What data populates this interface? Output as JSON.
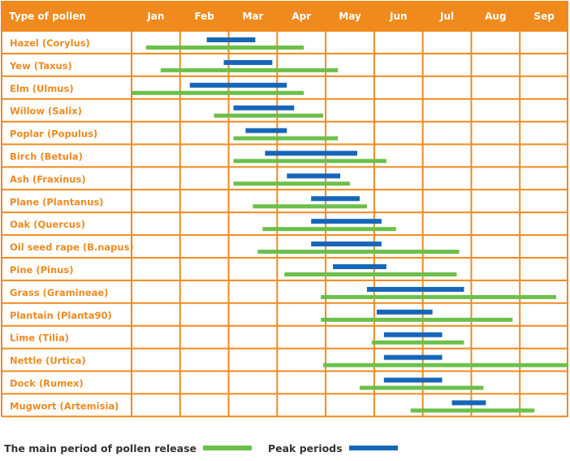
{
  "colors": {
    "header_bg": "#f08a1d",
    "grid": "#f08a1d",
    "label_text": "#ef8a1f",
    "main_bar": "#6cc04a",
    "peak_bar": "#1666b8"
  },
  "legend": {
    "main_label": "The main period of pollen release",
    "peak_label": "Peak periods"
  },
  "chart_data": {
    "type": "gantt",
    "title": "",
    "header_label": "Type of pollen",
    "months": [
      "Jan",
      "Feb",
      "Mar",
      "Apr",
      "May",
      "Jun",
      "Jul",
      "Aug",
      "Sep"
    ],
    "x_unit": "month (0 = start of Jan, 9 = end of Sep)",
    "rows": [
      {
        "label": "Hazel (Corylus)",
        "main": [
          0.3,
          3.55
        ],
        "peak": [
          1.55,
          2.55
        ]
      },
      {
        "label": "Yew (Taxus)",
        "main": [
          0.6,
          4.25
        ],
        "peak": [
          1.9,
          2.9
        ]
      },
      {
        "label": "Elm (Ulmus)",
        "main": [
          0.0,
          3.55
        ],
        "peak": [
          1.2,
          3.2
        ]
      },
      {
        "label": "Willow (Salix)",
        "main": [
          1.7,
          3.95
        ],
        "peak": [
          2.1,
          3.35
        ]
      },
      {
        "label": "Poplar (Populus)",
        "main": [
          2.1,
          4.25
        ],
        "peak": [
          2.35,
          3.2
        ]
      },
      {
        "label": "Birch (Betula)",
        "main": [
          2.1,
          5.25
        ],
        "peak": [
          2.75,
          4.65
        ]
      },
      {
        "label": "Ash (Fraxinus)",
        "main": [
          2.1,
          4.5
        ],
        "peak": [
          3.2,
          4.3
        ]
      },
      {
        "label": "Plane (Plantanus)",
        "main": [
          2.5,
          4.85
        ],
        "peak": [
          3.7,
          4.7
        ]
      },
      {
        "label": "Oak (Quercus)",
        "main": [
          2.7,
          5.45
        ],
        "peak": [
          3.7,
          5.15
        ]
      },
      {
        "label": "Oil seed rape (B.napus)",
        "main": [
          2.6,
          6.75
        ],
        "peak": [
          3.7,
          5.15
        ]
      },
      {
        "label": "Pine (Pinus)",
        "main": [
          3.15,
          6.7
        ],
        "peak": [
          4.15,
          5.25
        ]
      },
      {
        "label": "Grass (Gramineae)",
        "main": [
          3.9,
          8.75
        ],
        "peak": [
          4.85,
          6.85
        ]
      },
      {
        "label": "Plantain (Planta90)",
        "main": [
          3.9,
          7.85
        ],
        "peak": [
          5.05,
          6.2
        ]
      },
      {
        "label": "Lime (Tilia)",
        "main": [
          4.95,
          6.85
        ],
        "peak": [
          5.2,
          6.4
        ]
      },
      {
        "label": "Nettle (Urtica)",
        "main": [
          3.95,
          9.0
        ],
        "peak": [
          5.2,
          6.4
        ]
      },
      {
        "label": "Dock (Rumex)",
        "main": [
          4.7,
          7.25
        ],
        "peak": [
          5.2,
          6.4
        ]
      },
      {
        "label": "Mugwort (Artemisia)",
        "main": [
          5.75,
          8.3
        ],
        "peak": [
          6.6,
          7.3
        ]
      }
    ]
  }
}
